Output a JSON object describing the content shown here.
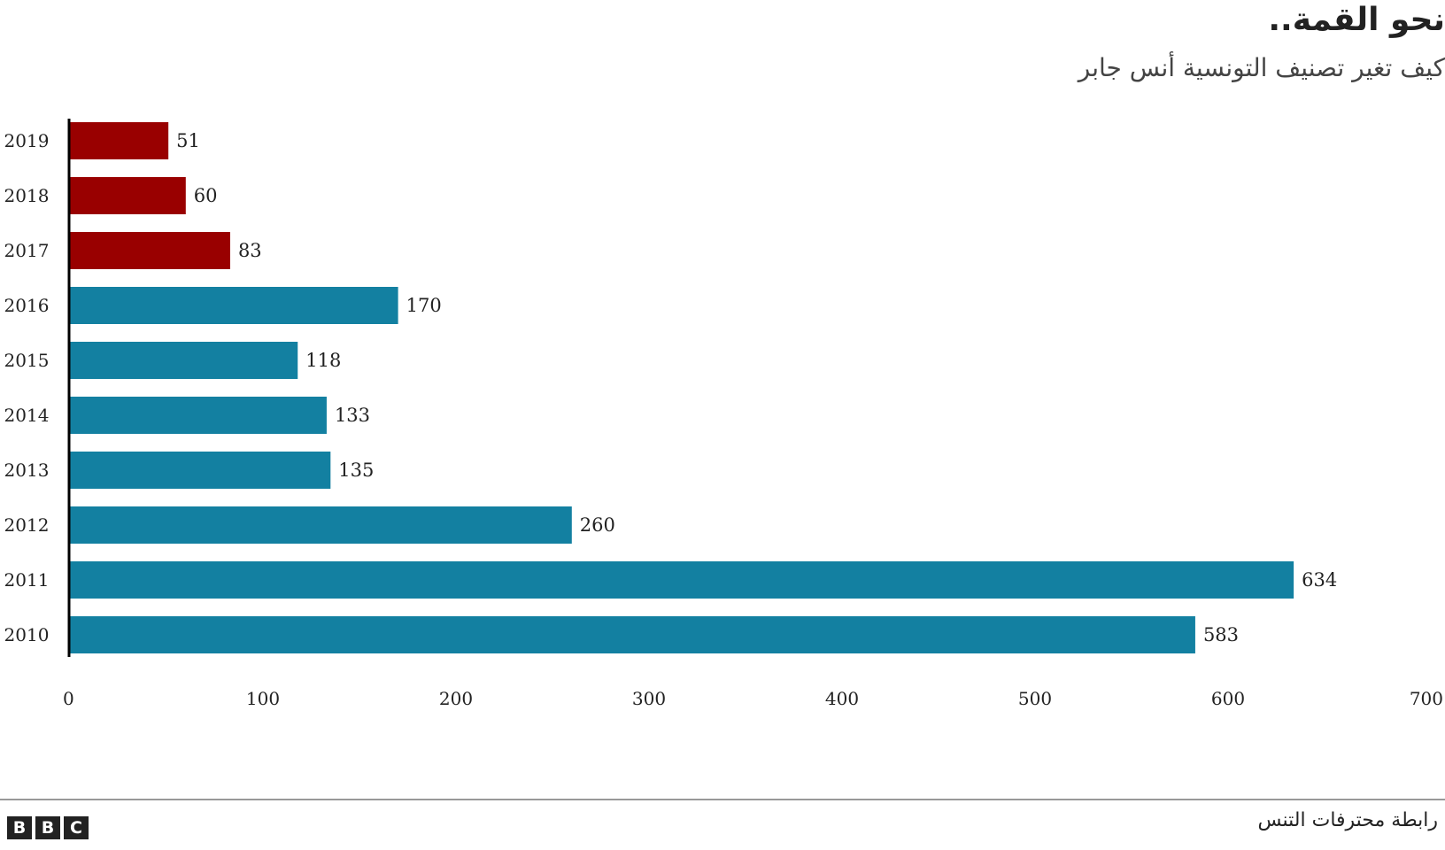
{
  "header": {
    "title": "نحو القمة..",
    "subtitle": "كيف تغير تصنيف التونسية أنس جابر"
  },
  "footer": {
    "source": "رابطة محترفات التنس",
    "logo_letters": [
      "B",
      "B",
      "C"
    ]
  },
  "colors": {
    "recent": "#990000",
    "earlier": "#1380A1",
    "axis": "#000000"
  },
  "chart_data": {
    "type": "bar",
    "orientation": "horizontal",
    "title": "نحو القمة..",
    "subtitle": "كيف تغير تصنيف التونسية أنس جابر",
    "categories": [
      "2019",
      "2018",
      "2017",
      "2016",
      "2015",
      "2014",
      "2013",
      "2012",
      "2011",
      "2010"
    ],
    "values": [
      51,
      60,
      83,
      170,
      118,
      133,
      135,
      260,
      634,
      583
    ],
    "highlight": [
      true,
      true,
      true,
      false,
      false,
      false,
      false,
      false,
      false,
      false
    ],
    "xlim": [
      0,
      700
    ],
    "xticks": [
      0,
      100,
      200,
      300,
      400,
      500,
      600,
      700
    ],
    "xlabel": "",
    "ylabel": "",
    "grid": false
  }
}
